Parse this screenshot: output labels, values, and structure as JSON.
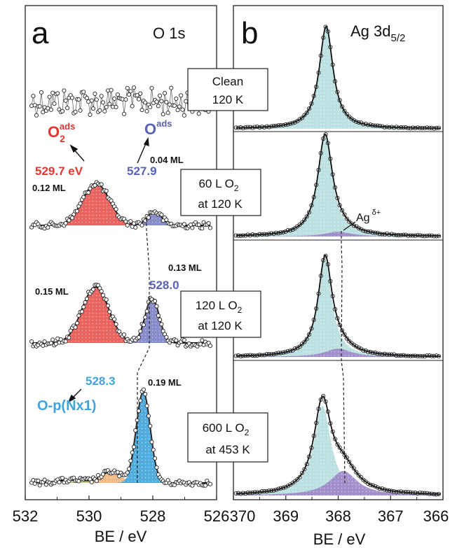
{
  "panel_a": {
    "letter": "a",
    "title": "O 1s",
    "xlabel": "BE / eV",
    "xticks": [
      "532",
      "530",
      "528",
      "526"
    ],
    "labels": {
      "o2_species_main": "O",
      "o2_species_sub": "2",
      "o2_species_sup": "ads",
      "o_species_main": "O",
      "o_species_sup": "ads",
      "o2_be": "529.7 eV",
      "o_be_60": "527.9",
      "o_be_120": "528.0",
      "onx_be": "528.3",
      "onx_name": "O-p(Nx1)",
      "cov_o2_60": "0.12 ML",
      "cov_o_60": "0.04 ML",
      "cov_o2_120": "0.15 ML",
      "cov_o_120": "0.13 ML",
      "cov_onx": "0.19 ML"
    }
  },
  "panel_b": {
    "letter": "b",
    "title_main": "Ag 3d",
    "title_sub": "5/2",
    "xlabel": "BE / eV",
    "xticks": [
      "370",
      "369",
      "368",
      "367",
      "366"
    ],
    "ag_delta_main": "Ag",
    "ag_delta_sup": "δ+"
  },
  "conditions": [
    {
      "line1": "Clean",
      "line2": "120 K",
      "line2_sub": ""
    },
    {
      "line1": "60 L O",
      "line1_sub": "2",
      "line2": "at 120 K"
    },
    {
      "line1": "120 L O",
      "line1_sub": "2",
      "line2": "at 120 K"
    },
    {
      "line1": "600 L O",
      "line1_sub": "2",
      "line2": "at 453 K"
    }
  ],
  "colors": {
    "o2_peak": "#e8534f",
    "o_peak": "#7b7fc4",
    "onx_peak": "#3fa4dc",
    "ag_main": "#b6dede",
    "ag_delta": "#9c86c8",
    "o2_label": "#e8352f",
    "o_label": "#5a62b8",
    "onx_label": "#3fa4dc",
    "small_1": "#f0b27a",
    "small_2": "#a8c878"
  },
  "chart_data": [
    {
      "type": "line",
      "panel": "a",
      "title": "O 1s",
      "xlabel": "BE / eV",
      "xlim": [
        532,
        526
      ],
      "x_reversed": true,
      "spectra": [
        {
          "condition": "Clean 120 K",
          "components": []
        },
        {
          "condition": "60 L O2 at 120 K",
          "components": [
            {
              "species": "O2 ads",
              "center": 529.7,
              "coverage_ML": 0.12
            },
            {
              "species": "O ads",
              "center": 527.9,
              "coverage_ML": 0.04
            }
          ]
        },
        {
          "condition": "120 L O2 at 120 K",
          "components": [
            {
              "species": "O2 ads",
              "center": 529.8,
              "coverage_ML": 0.15
            },
            {
              "species": "O ads",
              "center": 528.0,
              "coverage_ML": 0.13
            }
          ]
        },
        {
          "condition": "600 L O2 at 453 K",
          "components": [
            {
              "species": "O-p(Nx1)",
              "center": 528.3,
              "coverage_ML": 0.19
            }
          ]
        }
      ]
    },
    {
      "type": "line",
      "panel": "b",
      "title": "Ag 3d5/2",
      "xlabel": "BE / eV",
      "xlim": [
        370,
        366
      ],
      "x_reversed": true,
      "spectra": [
        {
          "condition": "Clean 120 K",
          "components": [
            {
              "species": "Ag",
              "center": 368.25
            }
          ]
        },
        {
          "condition": "60 L O2 at 120 K",
          "components": [
            {
              "species": "Ag",
              "center": 368.25
            },
            {
              "species": "Ag δ+",
              "center": 368.0
            }
          ]
        },
        {
          "condition": "120 L O2 at 120 K",
          "components": [
            {
              "species": "Ag",
              "center": 368.25
            },
            {
              "species": "Ag δ+",
              "center": 368.0
            }
          ]
        },
        {
          "condition": "600 L O2 at 453 K",
          "components": [
            {
              "species": "Ag",
              "center": 368.3
            },
            {
              "species": "Ag δ+",
              "center": 367.9
            }
          ]
        }
      ]
    }
  ]
}
